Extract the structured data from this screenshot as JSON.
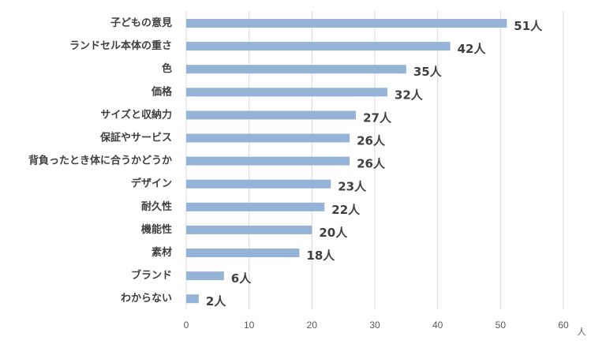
{
  "chart_data": {
    "type": "bar",
    "orientation": "horizontal",
    "categories": [
      "子どもの意見",
      "ランドセル本体の重さ",
      "色",
      "価格",
      "サイズと収納力",
      "保証やサービス",
      "背負ったとき体に合うかどうか",
      "デザイン",
      "耐久性",
      "機能性",
      "素材",
      "ブランド",
      "わからない"
    ],
    "values": [
      51,
      42,
      35,
      32,
      27,
      26,
      26,
      23,
      22,
      20,
      18,
      6,
      2
    ],
    "data_labels": [
      "51人",
      "42人",
      "35人",
      "32人",
      "27人",
      "26人",
      "26人",
      "23人",
      "22人",
      "20人",
      "18人",
      "6人",
      "2人"
    ],
    "xlim": [
      0,
      60
    ],
    "x_ticks": [
      0,
      10,
      20,
      30,
      40,
      50,
      60
    ],
    "x_tick_labels": [
      "0",
      "10",
      "20",
      "30",
      "40",
      "50",
      "60"
    ],
    "x_unit": "人",
    "grid": true,
    "legend": "none",
    "bar_color": "#95b3d7",
    "grid_color": "#d9d9d9"
  }
}
